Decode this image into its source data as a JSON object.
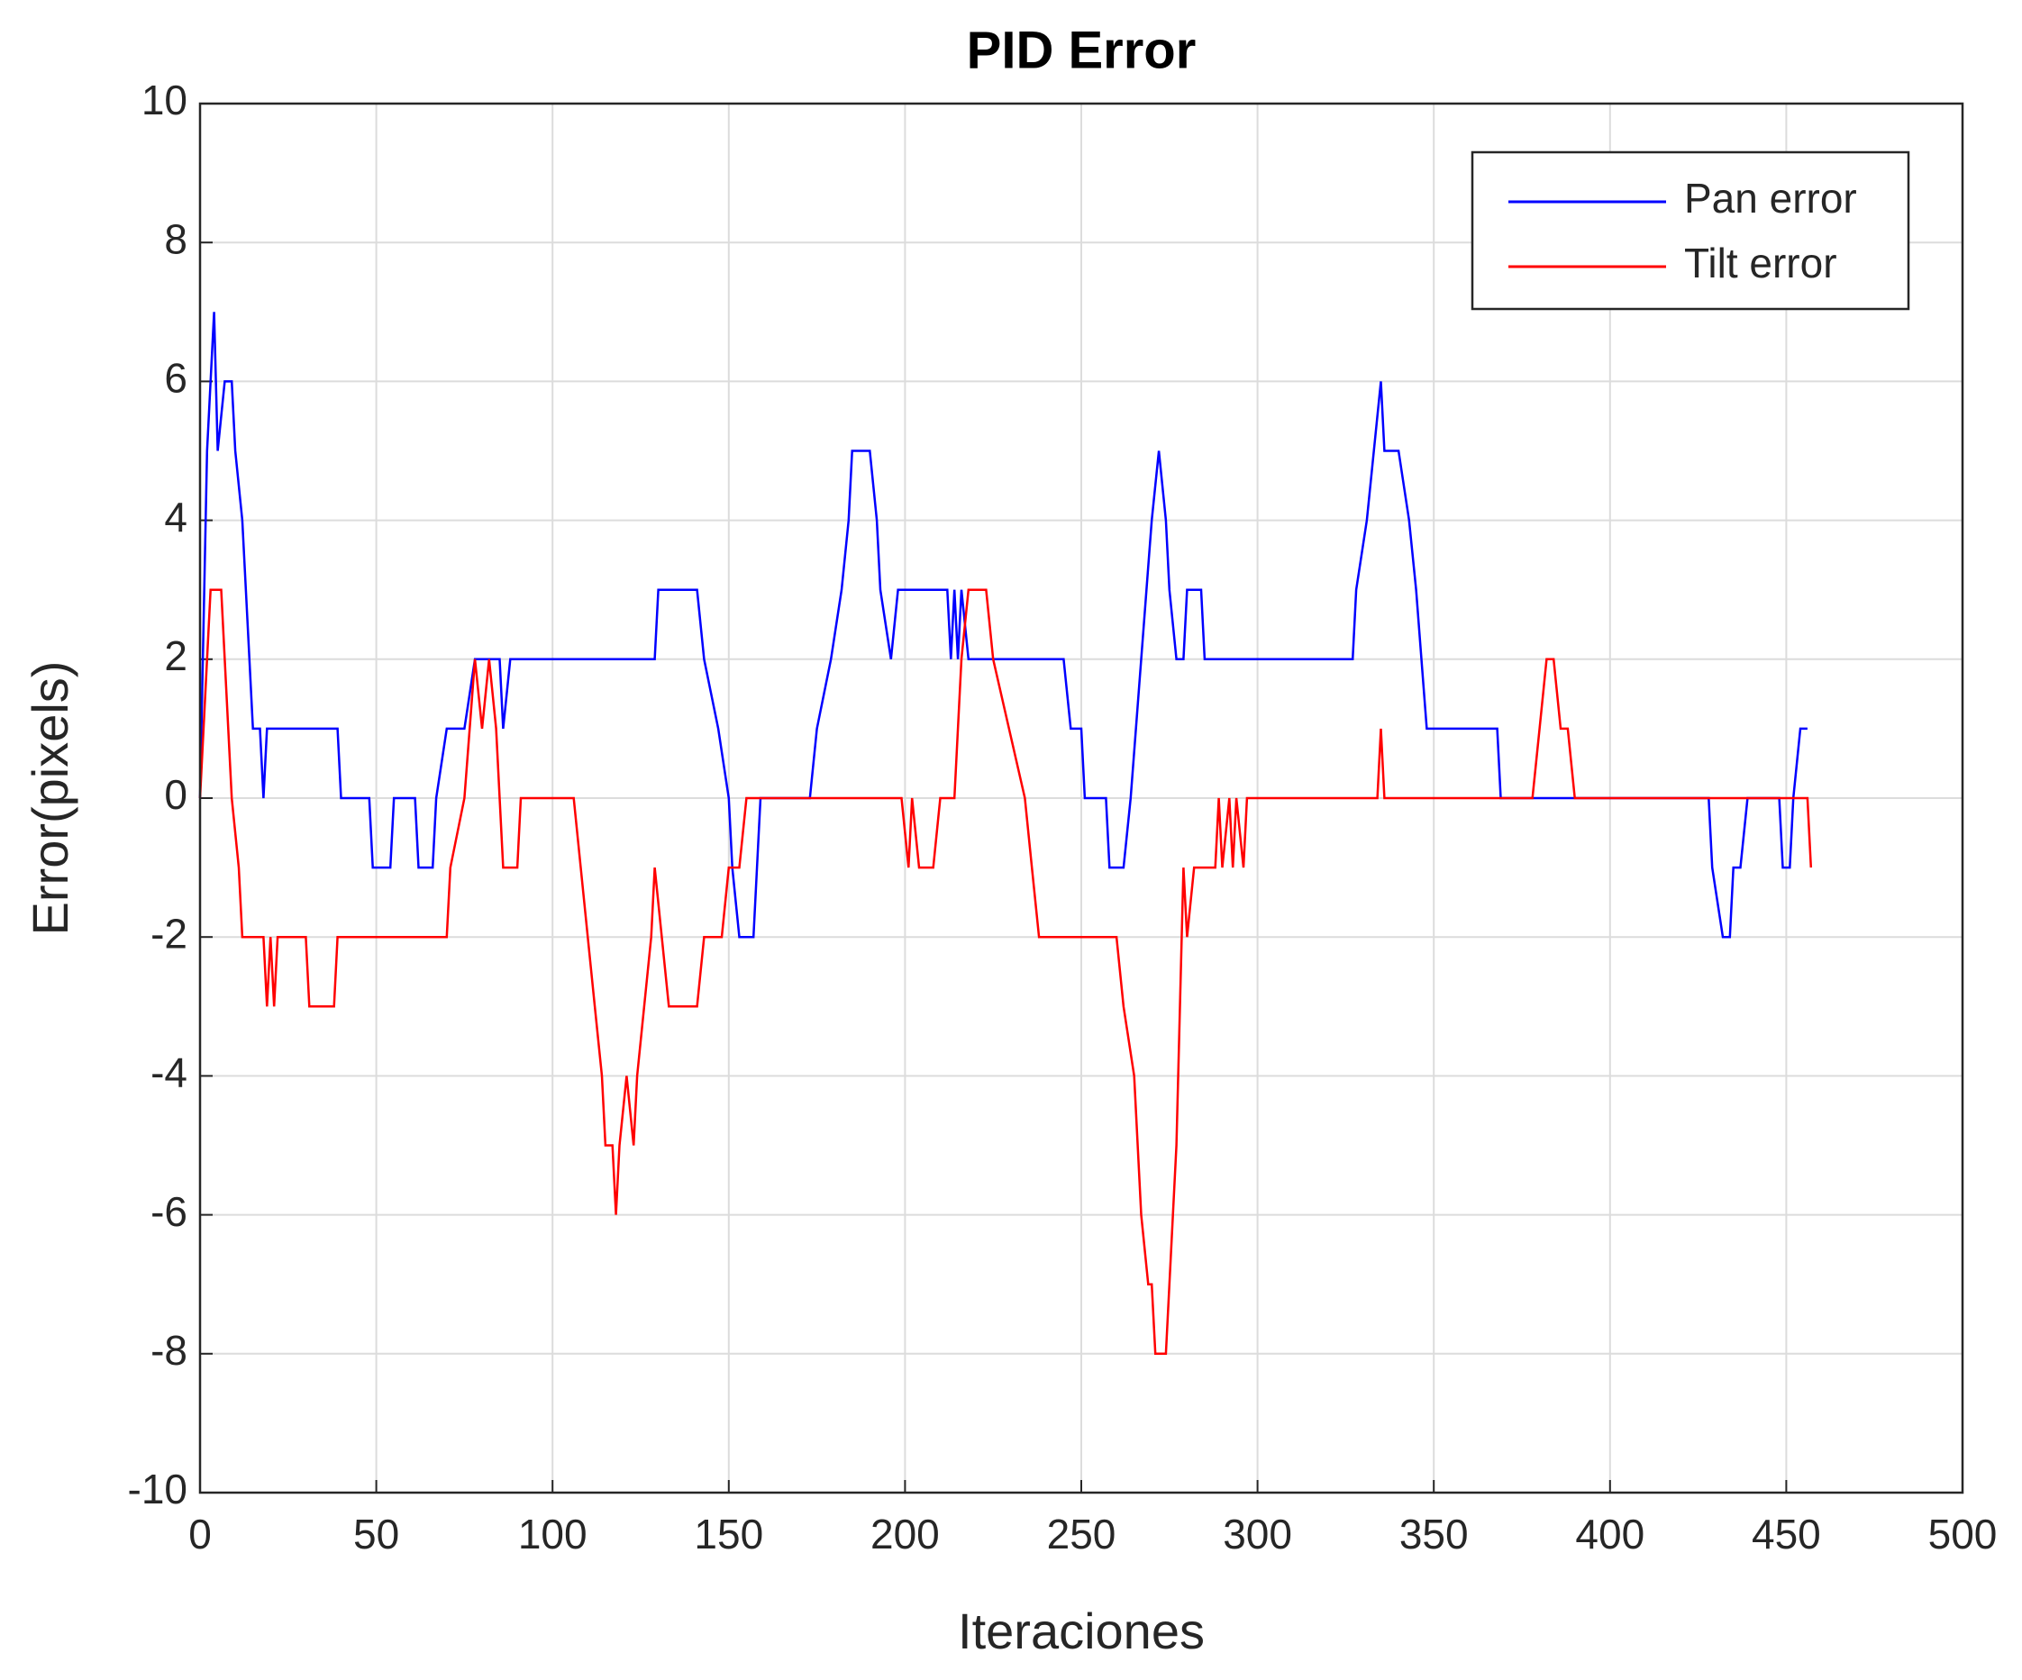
{
  "chart_data": {
    "type": "line",
    "title": "PID Error",
    "x_label": "Iteraciones",
    "y_label": "Error(pixels)",
    "xlim": [
      0,
      500
    ],
    "xticks": [
      0,
      50,
      100,
      150,
      200,
      250,
      300,
      350,
      400,
      450,
      500
    ],
    "ylim": [
      -10,
      10
    ],
    "yticks": [
      -10,
      -8,
      -6,
      -4,
      -2,
      0,
      2,
      4,
      6,
      8,
      10
    ],
    "grid": true,
    "legend": "upper right",
    "series": [
      {
        "name": "Pan error",
        "color": "#0000ff",
        "x": [
          0,
          2,
          4,
          5,
          7,
          9,
          10,
          12,
          14,
          15,
          17,
          18,
          19,
          39,
          40,
          48,
          49,
          54,
          55,
          61,
          62,
          66,
          67,
          70,
          75,
          78,
          85,
          86,
          88,
          129,
          130,
          141,
          143,
          147,
          150,
          151,
          153,
          157,
          158,
          159,
          173,
          175,
          179,
          182,
          184,
          185,
          190,
          192,
          193,
          196,
          198,
          212,
          213,
          214,
          215,
          216,
          218,
          245,
          247,
          250,
          251,
          257,
          258,
          262,
          264,
          267,
          270,
          272,
          274,
          275,
          277,
          279,
          280,
          284,
          285,
          327,
          328,
          331,
          333,
          335,
          336,
          340,
          343,
          345,
          348,
          368,
          369,
          428,
          429,
          432,
          434,
          435,
          437,
          439,
          448,
          449,
          451,
          452,
          454,
          456
        ],
        "values": [
          0,
          5,
          7,
          5,
          6,
          6,
          5,
          4,
          2,
          1,
          1,
          0,
          1,
          1,
          0,
          0,
          -1,
          -1,
          0,
          0,
          -1,
          -1,
          0,
          1,
          1,
          2,
          2,
          1,
          2,
          2,
          3,
          3,
          2,
          1,
          0,
          -1,
          -2,
          -2,
          -1,
          0,
          0,
          1,
          2,
          3,
          4,
          5,
          5,
          4,
          3,
          2,
          3,
          3,
          2,
          3,
          2,
          3,
          2,
          2,
          1,
          1,
          0,
          0,
          -1,
          -1,
          0,
          2,
          4,
          5,
          4,
          3,
          2,
          2,
          3,
          3,
          2,
          2,
          3,
          4,
          5,
          6,
          5,
          5,
          4,
          3,
          1,
          1,
          0,
          0,
          -1,
          -2,
          -2,
          -1,
          -1,
          0,
          0,
          -1,
          -1,
          0,
          1,
          1
        ]
      },
      {
        "name": "Tilt error",
        "color": "#ff0000",
        "x": [
          0,
          3,
          6,
          7,
          9,
          11,
          12,
          18,
          19,
          20,
          21,
          22,
          30,
          31,
          38,
          39,
          70,
          71,
          75,
          78,
          80,
          82,
          84,
          86,
          90,
          91,
          106,
          108,
          110,
          112,
          114,
          115,
          117,
          118,
          119,
          121,
          123,
          124,
          128,
          129,
          133,
          141,
          143,
          148,
          150,
          153,
          155,
          199,
          201,
          202,
          204,
          208,
          210,
          214,
          216,
          218,
          223,
          225,
          234,
          236,
          238,
          260,
          262,
          265,
          267,
          269,
          270,
          271,
          274,
          275,
          276,
          277,
          279,
          280,
          282,
          288,
          289,
          290,
          292,
          293,
          294,
          296,
          297,
          334,
          335,
          336,
          378,
          380,
          382,
          384,
          386,
          388,
          390,
          456,
          457
        ],
        "values": [
          0,
          3,
          3,
          2,
          0,
          -1,
          -2,
          -2,
          -3,
          -2,
          -3,
          -2,
          -2,
          -3,
          -3,
          -2,
          -2,
          -1,
          0,
          2,
          1,
          2,
          1,
          -1,
          -1,
          0,
          0,
          -1,
          -2,
          -3,
          -4,
          -5,
          -5,
          -6,
          -5,
          -4,
          -5,
          -4,
          -2,
          -1,
          -3,
          -3,
          -2,
          -2,
          -1,
          -1,
          0,
          0,
          -1,
          0,
          -1,
          -1,
          0,
          0,
          2,
          3,
          3,
          2,
          0,
          -1,
          -2,
          -2,
          -3,
          -4,
          -6,
          -7,
          -7,
          -8,
          -8,
          -7,
          -6,
          -5,
          -1,
          -2,
          -1,
          -1,
          0,
          -1,
          0,
          -1,
          0,
          -1,
          0,
          0,
          1,
          0,
          0,
          1,
          2,
          2,
          1,
          1,
          0,
          0,
          -1
        ]
      }
    ]
  }
}
